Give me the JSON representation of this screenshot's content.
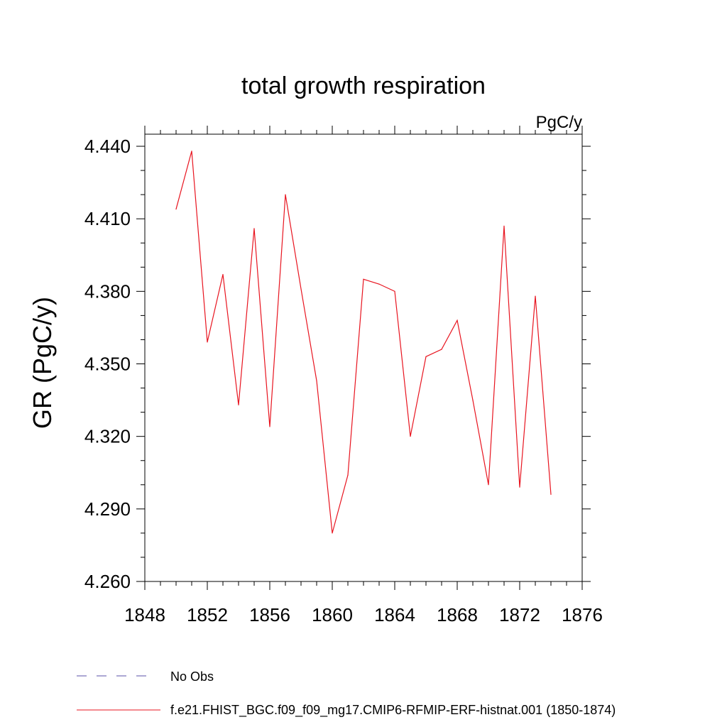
{
  "chart_data": {
    "type": "line",
    "title": "total growth respiration",
    "units_label": "PgC/y",
    "ylabel": "GR  (PgC/y)",
    "xlabel": "",
    "xlim": [
      1848,
      1876
    ],
    "ylim": [
      4.26,
      4.445
    ],
    "x_ticks": [
      1848,
      1852,
      1856,
      1860,
      1864,
      1868,
      1872,
      1876
    ],
    "x_tick_labels": [
      "1848",
      "1852",
      "1856",
      "1860",
      "1864",
      "1868",
      "1872",
      "1876"
    ],
    "y_ticks": [
      4.26,
      4.29,
      4.32,
      4.35,
      4.38,
      4.41,
      4.44
    ],
    "y_tick_labels": [
      "4.260",
      "4.290",
      "4.320",
      "4.350",
      "4.380",
      "4.410",
      "4.440"
    ],
    "series": [
      {
        "name": "f.e21.FHIST_BGC.f09_f09_mg17.CMIP6-RFMIP-ERF-histnat.001 (1850-1874)",
        "color": "#e8141f",
        "style": "solid",
        "x": [
          1850,
          1851,
          1852,
          1853,
          1854,
          1855,
          1856,
          1857,
          1858,
          1859,
          1860,
          1861,
          1862,
          1863,
          1864,
          1865,
          1866,
          1867,
          1868,
          1869,
          1870,
          1871,
          1872,
          1873,
          1874
        ],
        "values": [
          4.414,
          4.438,
          4.359,
          4.387,
          4.333,
          4.406,
          4.324,
          4.42,
          4.381,
          4.343,
          4.28,
          4.304,
          4.385,
          4.383,
          4.38,
          4.32,
          4.353,
          4.356,
          4.368,
          4.335,
          4.3,
          4.407,
          4.299,
          4.378,
          4.296
        ]
      }
    ],
    "legend": [
      {
        "label": "No Obs",
        "color": "#5a4fa8",
        "style": "dashed"
      },
      {
        "label": "f.e21.FHIST_BGC.f09_f09_mg17.CMIP6-RFMIP-ERF-histnat.001 (1850-1874)",
        "color": "#e8141f",
        "style": "solid"
      }
    ],
    "legend_position": "bottom-left"
  }
}
